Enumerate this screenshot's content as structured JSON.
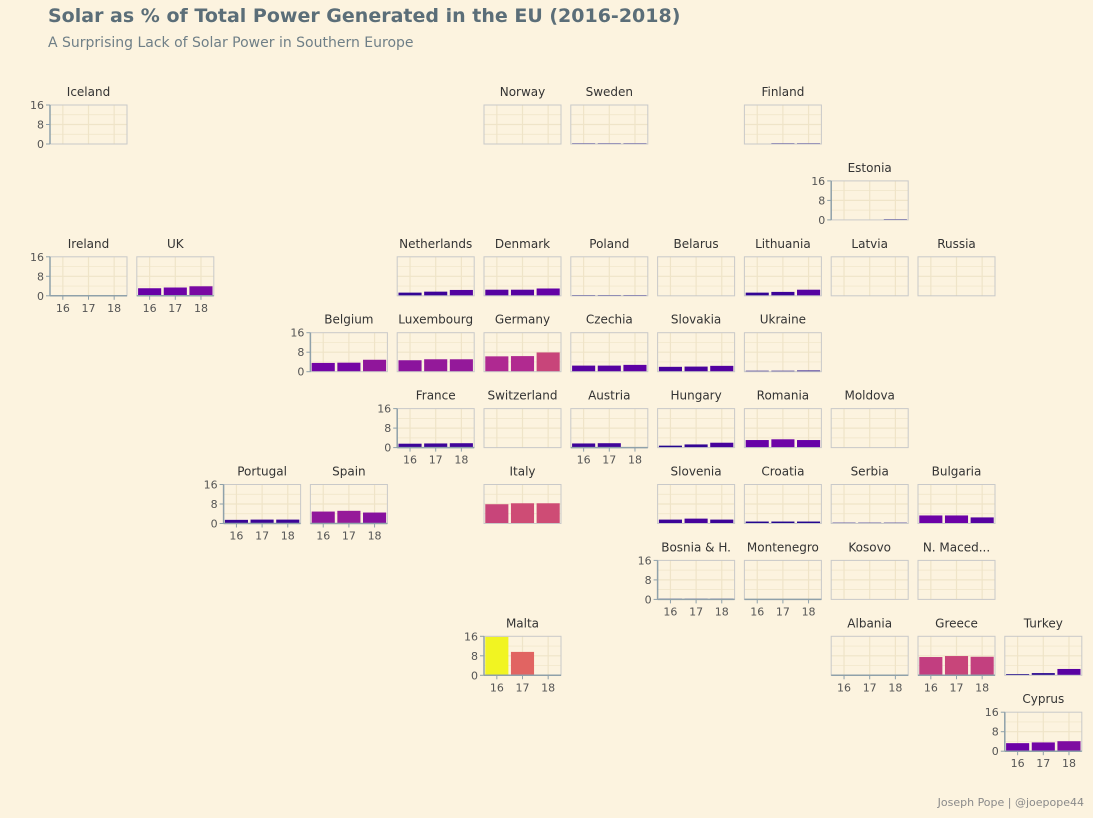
{
  "header": {
    "title": "Solar as % of Total Power Generated in the EU (2016-2018)",
    "subtitle": "A Surprising Lack of Solar Power in Southern Europe",
    "caption": "Joseph Pope | @joepope44"
  },
  "colors": {
    "background": "#fcf3df",
    "panel_border": "#c9c9c9",
    "grid": "#efe4c8",
    "axis": "#8fa1aa",
    "text": "#333333",
    "tick_text": "#555555",
    "color_scale": [
      "#0d0887",
      "#6a00a8",
      "#b12a90",
      "#e16462",
      "#fca636",
      "#f0f921"
    ]
  },
  "chart_data": {
    "type": "bar",
    "facet": "geofacet",
    "categories": [
      "16",
      "17",
      "18"
    ],
    "ylim": [
      0,
      16
    ],
    "yticks": [
      0,
      8,
      16
    ],
    "xlabel": "",
    "ylabel": "",
    "panels": [
      {
        "name": "Iceland",
        "row": 1,
        "col": 1,
        "values": [
          0,
          0,
          0
        ],
        "show_y": true,
        "show_x": false
      },
      {
        "name": "Norway",
        "row": 1,
        "col": 6,
        "values": [
          0,
          0,
          0
        ],
        "show_y": false,
        "show_x": false
      },
      {
        "name": "Sweden",
        "row": 1,
        "col": 7,
        "values": [
          0.1,
          0.1,
          0.1
        ],
        "show_y": false,
        "show_x": false
      },
      {
        "name": "Finland",
        "row": 1,
        "col": 9,
        "values": [
          0,
          0.1,
          0.1
        ],
        "show_y": false,
        "show_x": false
      },
      {
        "name": "Estonia",
        "row": 2,
        "col": 10,
        "values": [
          0,
          0,
          0.1
        ],
        "show_y": true,
        "show_x": false
      },
      {
        "name": "Ireland",
        "row": 3,
        "col": 1,
        "values": [
          0,
          0,
          0
        ],
        "show_y": true,
        "show_x": true
      },
      {
        "name": "UK",
        "row": 3,
        "col": 2,
        "values": [
          3.1,
          3.4,
          3.9
        ],
        "show_y": false,
        "show_x": true
      },
      {
        "name": "Netherlands",
        "row": 3,
        "col": 5,
        "values": [
          1.3,
          1.7,
          2.4
        ],
        "show_y": false,
        "show_x": false
      },
      {
        "name": "Denmark",
        "row": 3,
        "col": 6,
        "values": [
          2.5,
          2.5,
          3.0
        ],
        "show_y": false,
        "show_x": false
      },
      {
        "name": "Poland",
        "row": 3,
        "col": 7,
        "values": [
          0.1,
          0.1,
          0.2
        ],
        "show_y": false,
        "show_x": false
      },
      {
        "name": "Belarus",
        "row": 3,
        "col": 8,
        "values": [
          0,
          0,
          0
        ],
        "show_y": false,
        "show_x": false
      },
      {
        "name": "Lithuania",
        "row": 3,
        "col": 9,
        "values": [
          1.3,
          1.6,
          2.5
        ],
        "show_y": false,
        "show_x": false
      },
      {
        "name": "Latvia",
        "row": 3,
        "col": 10,
        "values": [
          0,
          0,
          0
        ],
        "show_y": false,
        "show_x": false
      },
      {
        "name": "Russia",
        "row": 3,
        "col": 11,
        "values": [
          0,
          0,
          0
        ],
        "show_y": false,
        "show_x": false
      },
      {
        "name": "Belgium",
        "row": 4,
        "col": 4,
        "values": [
          3.6,
          3.7,
          4.9
        ],
        "show_y": true,
        "show_x": false
      },
      {
        "name": "Luxembourg",
        "row": 4,
        "col": 5,
        "values": [
          4.7,
          5.1,
          5.1
        ],
        "show_y": false,
        "show_x": false
      },
      {
        "name": "Germany",
        "row": 4,
        "col": 6,
        "values": [
          6.3,
          6.4,
          7.9
        ],
        "show_y": false,
        "show_x": false
      },
      {
        "name": "Czechia",
        "row": 4,
        "col": 7,
        "values": [
          2.5,
          2.5,
          2.8
        ],
        "show_y": false,
        "show_x": false
      },
      {
        "name": "Slovakia",
        "row": 4,
        "col": 8,
        "values": [
          2.0,
          2.1,
          2.4
        ],
        "show_y": false,
        "show_x": false
      },
      {
        "name": "Ukraine",
        "row": 4,
        "col": 9,
        "values": [
          0.4,
          0.4,
          0.5
        ],
        "show_y": false,
        "show_x": false
      },
      {
        "name": "France",
        "row": 5,
        "col": 5,
        "values": [
          1.6,
          1.7,
          1.8
        ],
        "show_y": true,
        "show_x": true
      },
      {
        "name": "Switzerland",
        "row": 5,
        "col": 6,
        "values": [
          0,
          0,
          0
        ],
        "show_y": false,
        "show_x": false
      },
      {
        "name": "Austria",
        "row": 5,
        "col": 7,
        "values": [
          1.7,
          1.8,
          0
        ],
        "show_y": false,
        "show_x": true
      },
      {
        "name": "Hungary",
        "row": 5,
        "col": 8,
        "values": [
          0.8,
          1.3,
          2.0
        ],
        "show_y": false,
        "show_x": false
      },
      {
        "name": "Romania",
        "row": 5,
        "col": 9,
        "values": [
          3.1,
          3.4,
          3.1
        ],
        "show_y": false,
        "show_x": false
      },
      {
        "name": "Moldova",
        "row": 5,
        "col": 10,
        "values": [
          0,
          0,
          0
        ],
        "show_y": false,
        "show_x": false
      },
      {
        "name": "Portugal",
        "row": 6,
        "col": 3,
        "values": [
          1.5,
          1.6,
          1.6
        ],
        "show_y": true,
        "show_x": true
      },
      {
        "name": "Spain",
        "row": 6,
        "col": 4,
        "values": [
          4.9,
          5.2,
          4.5
        ],
        "show_y": false,
        "show_x": true
      },
      {
        "name": "Italy",
        "row": 6,
        "col": 6,
        "values": [
          7.9,
          8.3,
          8.3
        ],
        "show_y": false,
        "show_x": false
      },
      {
        "name": "Slovenia",
        "row": 6,
        "col": 8,
        "values": [
          1.6,
          2.0,
          1.6
        ],
        "show_y": false,
        "show_x": false
      },
      {
        "name": "Croatia",
        "row": 6,
        "col": 9,
        "values": [
          0.8,
          0.8,
          0.8
        ],
        "show_y": false,
        "show_x": false
      },
      {
        "name": "Serbia",
        "row": 6,
        "col": 10,
        "values": [
          0.1,
          0.1,
          0.1
        ],
        "show_y": false,
        "show_x": false
      },
      {
        "name": "Bulgaria",
        "row": 6,
        "col": 11,
        "values": [
          3.3,
          3.3,
          2.5
        ],
        "show_y": false,
        "show_x": false
      },
      {
        "name": "Bosnia & H.",
        "row": 7,
        "col": 8,
        "values": [
          0.2,
          0.2,
          0.2
        ],
        "show_y": true,
        "show_x": true
      },
      {
        "name": "Montenegro",
        "row": 7,
        "col": 9,
        "values": [
          0,
          0,
          0
        ],
        "show_y": false,
        "show_x": true
      },
      {
        "name": "Kosovo",
        "row": 7,
        "col": 10,
        "values": [
          0,
          0,
          0
        ],
        "show_y": false,
        "show_x": false
      },
      {
        "name": "N. Maced...",
        "row": 7,
        "col": 11,
        "values": [
          0,
          0,
          0
        ],
        "show_y": false,
        "show_x": false
      },
      {
        "name": "Malta",
        "row": 8,
        "col": 6,
        "values": [
          15.8,
          9.6,
          0
        ],
        "show_y": true,
        "show_x": true
      },
      {
        "name": "Albania",
        "row": 8,
        "col": 10,
        "values": [
          0,
          0,
          0
        ],
        "show_y": false,
        "show_x": true
      },
      {
        "name": "Greece",
        "row": 8,
        "col": 11,
        "values": [
          7.5,
          7.9,
          7.6
        ],
        "show_y": false,
        "show_x": true
      },
      {
        "name": "Turkey",
        "row": 8,
        "col": 12,
        "values": [
          0.5,
          0.9,
          2.6
        ],
        "show_y": false,
        "show_x": false
      },
      {
        "name": "Cyprus",
        "row": 9,
        "col": 12,
        "values": [
          3.3,
          3.6,
          4.1
        ],
        "show_y": true,
        "show_x": true
      }
    ]
  }
}
